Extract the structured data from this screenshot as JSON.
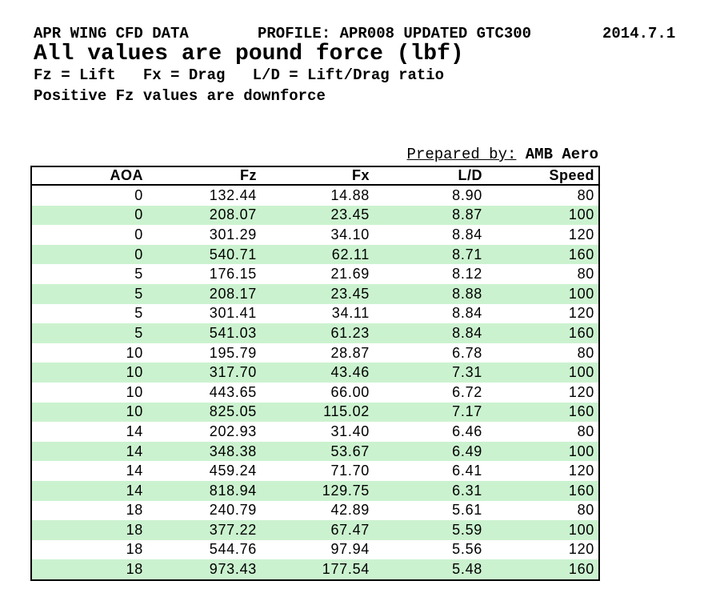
{
  "page": {
    "title": "APR WING CFD DATA",
    "profile": "PROFILE: APR008 UPDATED GTC300",
    "date": "2014.7.1",
    "units_note": "All values are pound force (lbf)",
    "legend": "Fz = Lift   Fx = Drag   L/D = Lift/Drag ratio",
    "sign_note": "Positive Fz values are downforce"
  },
  "prepared_by": {
    "label": "Prepared by:",
    "value": "AMB Aero"
  },
  "table": {
    "columns": [
      "AOA",
      "Fz",
      "Fx",
      "L/D",
      "Speed"
    ],
    "rows": [
      [
        "0",
        "132.44",
        "14.88",
        "8.90",
        "80"
      ],
      [
        "0",
        "208.07",
        "23.45",
        "8.87",
        "100"
      ],
      [
        "0",
        "301.29",
        "34.10",
        "8.84",
        "120"
      ],
      [
        "0",
        "540.71",
        "62.11",
        "8.71",
        "160"
      ],
      [
        "5",
        "176.15",
        "21.69",
        "8.12",
        "80"
      ],
      [
        "5",
        "208.17",
        "23.45",
        "8.88",
        "100"
      ],
      [
        "5",
        "301.41",
        "34.11",
        "8.84",
        "120"
      ],
      [
        "5",
        "541.03",
        "61.23",
        "8.84",
        "160"
      ],
      [
        "10",
        "195.79",
        "28.87",
        "6.78",
        "80"
      ],
      [
        "10",
        "317.70",
        "43.46",
        "7.31",
        "100"
      ],
      [
        "10",
        "443.65",
        "66.00",
        "6.72",
        "120"
      ],
      [
        "10",
        "825.05",
        "115.02",
        "7.17",
        "160"
      ],
      [
        "14",
        "202.93",
        "31.40",
        "6.46",
        "80"
      ],
      [
        "14",
        "348.38",
        "53.67",
        "6.49",
        "100"
      ],
      [
        "14",
        "459.24",
        "71.70",
        "6.41",
        "120"
      ],
      [
        "14",
        "818.94",
        "129.75",
        "6.31",
        "160"
      ],
      [
        "18",
        "240.79",
        "42.89",
        "5.61",
        "80"
      ],
      [
        "18",
        "377.22",
        "67.47",
        "5.59",
        "100"
      ],
      [
        "18",
        "544.76",
        "97.94",
        "5.56",
        "120"
      ],
      [
        "18",
        "973.43",
        "177.54",
        "5.48",
        "160"
      ]
    ],
    "row_alt_color": "#cbf2cf",
    "border_color": "#000000"
  }
}
